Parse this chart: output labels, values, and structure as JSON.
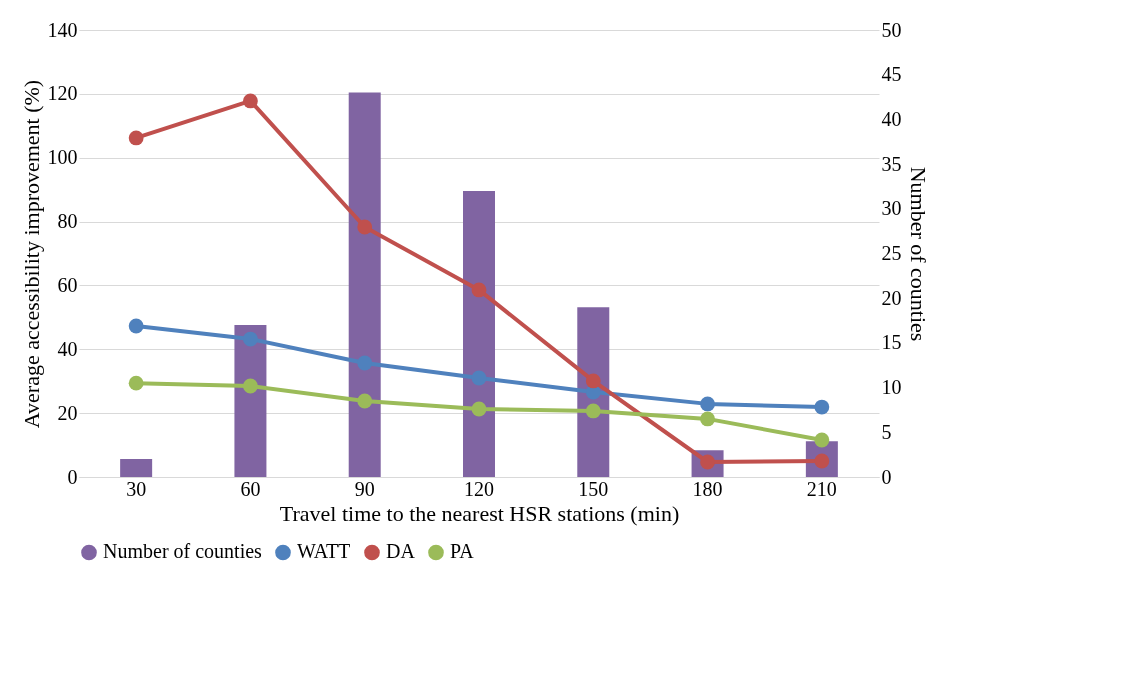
{
  "chart_data": {
    "type": "line",
    "xlabel": "Travel time to the nearest HSR stations (min)",
    "ylabel": "Average accessibility improvement (%)",
    "y2label": "Number of counties",
    "categories": [
      "30",
      "60",
      "90",
      "120",
      "150",
      "180",
      "210"
    ],
    "series": [
      {
        "name": "Number of counties",
        "type": "bar",
        "axis": "y2",
        "color": "#8064a2",
        "values": [
          2,
          17,
          43,
          32,
          19,
          3,
          4
        ]
      },
      {
        "name": "WATT",
        "color": "#4f81bd",
        "values": [
          47.3,
          43.2,
          35.7,
          31,
          26.6,
          22.9,
          21.9
        ]
      },
      {
        "name": "DA",
        "color": "#c0504d",
        "values": [
          106.2,
          117.8,
          78.3,
          58.6,
          30.1,
          4.7,
          5.0
        ]
      },
      {
        "name": "PA",
        "color": "#9bbb59",
        "values": [
          29.4,
          28.5,
          23.8,
          21.3,
          20.7,
          18.2,
          11.6
        ]
      }
    ],
    "ylim": [
      0,
      140
    ],
    "yticks": [
      0,
      20,
      40,
      60,
      80,
      100,
      120,
      140
    ],
    "y2lim": [
      0,
      50
    ],
    "y2ticks": [
      0,
      5,
      10,
      15,
      20,
      25,
      30,
      35,
      40,
      45,
      50
    ],
    "grid": "y",
    "legend": "bottom",
    "marker": "circle"
  }
}
